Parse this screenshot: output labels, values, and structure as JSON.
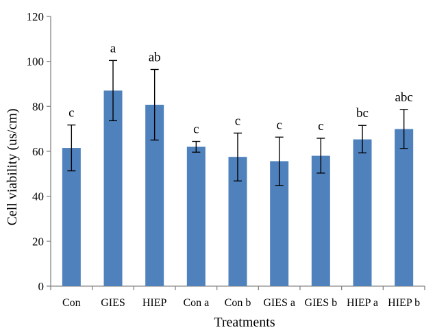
{
  "chart_data": {
    "type": "bar",
    "title": "",
    "xlabel": "Treatments",
    "ylabel": "Cell viability (us/cm)",
    "ylim": [
      0,
      120
    ],
    "yticks": [
      0,
      20,
      40,
      60,
      80,
      100,
      120
    ],
    "grid": false,
    "legend": "none",
    "categories": [
      "Con",
      "GIES",
      "HIEP",
      "Con a",
      "Con b",
      "GIES a",
      "GIES b",
      "HIEP a",
      "HIEP b"
    ],
    "series": [
      {
        "values": [
          61.5,
          87,
          80.7,
          62,
          57.5,
          55.6,
          58,
          65.3,
          69.9
        ],
        "error_low": [
          51.3,
          73.6,
          65,
          59.6,
          46.8,
          44.7,
          50.3,
          59.3,
          61.2
        ],
        "error_high": [
          71.7,
          100.4,
          96.4,
          64.4,
          68.1,
          66.3,
          65.8,
          71.5,
          78.6
        ],
        "labels": [
          "c",
          "a",
          "ab",
          "c",
          "c",
          "c",
          "c",
          "bc",
          "abc"
        ],
        "color": "#4F81BD"
      }
    ],
    "colors": {
      "bar": "#4F81BD",
      "axis": "#868686",
      "error": "#000000"
    }
  }
}
